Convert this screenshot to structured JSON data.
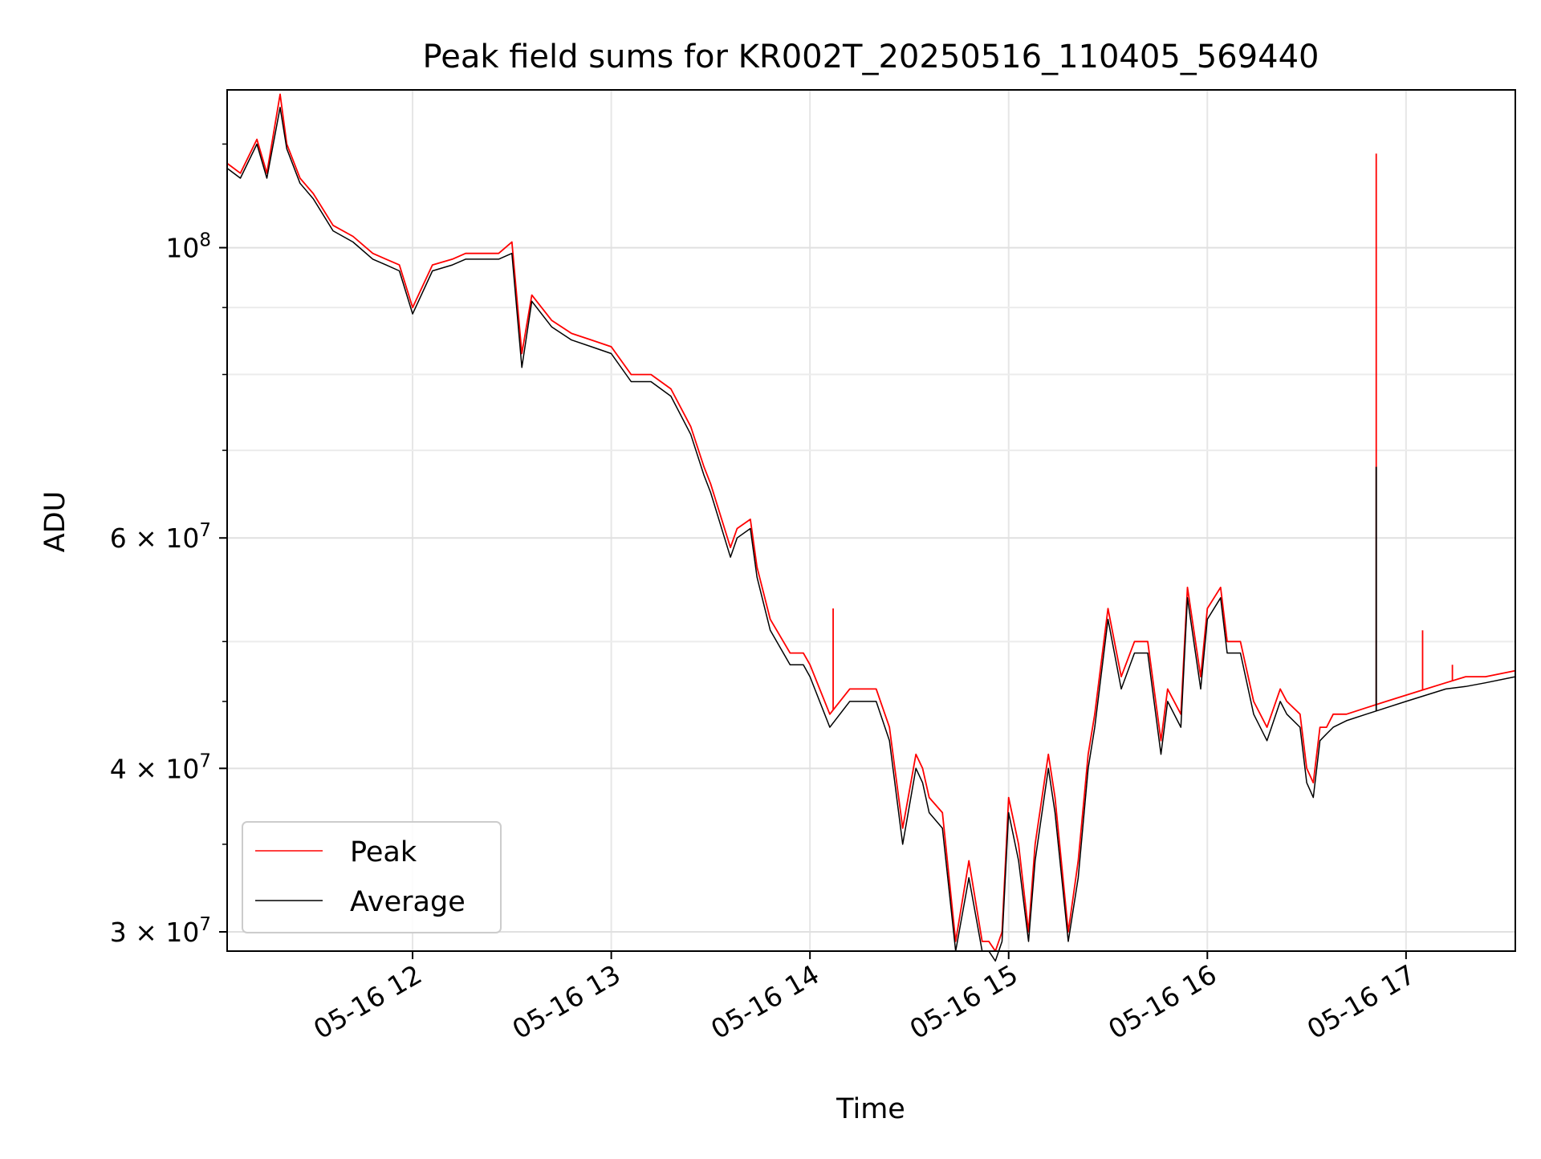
{
  "chart_data": {
    "type": "line",
    "title": "Peak field sums for KR002T_20250516_110405_569440",
    "xlabel": "Time",
    "ylabel": "ADU",
    "yscale": "log",
    "xlim": [
      "2025-05-16 11:04",
      "2025-05-16 17:33"
    ],
    "ylim": [
      29000000,
      132000000
    ],
    "grid": true,
    "legend": "lower-left",
    "x_ticks": [
      "05-16 12",
      "05-16 13",
      "05-16 14",
      "05-16 15",
      "05-16 16",
      "05-16 17"
    ],
    "x_tick_values": [
      "2025-05-16 12:00",
      "2025-05-16 13:00",
      "2025-05-16 14:00",
      "2025-05-16 15:00",
      "2025-05-16 16:00",
      "2025-05-16 17:00"
    ],
    "y_major_ticks": [
      {
        "value": 30000000,
        "mantissa": "3",
        "exponent": "7"
      },
      {
        "value": 40000000,
        "mantissa": "4",
        "exponent": "7"
      },
      {
        "value": 60000000,
        "mantissa": "6",
        "exponent": "7"
      },
      {
        "value": 100000000,
        "mantissa": "",
        "exponent": "8"
      }
    ],
    "y_minor_gridlines": [
      50000000,
      70000000,
      80000000,
      90000000
    ],
    "times": [
      "2025-05-16 11:04",
      "2025-05-16 11:08",
      "2025-05-16 11:13",
      "2025-05-16 11:16",
      "2025-05-16 11:20",
      "2025-05-16 11:22",
      "2025-05-16 11:26",
      "2025-05-16 11:30",
      "2025-05-16 11:36",
      "2025-05-16 11:42",
      "2025-05-16 11:48",
      "2025-05-16 11:52",
      "2025-05-16 11:56",
      "2025-05-16 12:00",
      "2025-05-16 12:06",
      "2025-05-16 12:12",
      "2025-05-16 12:16",
      "2025-05-16 12:20",
      "2025-05-16 12:24",
      "2025-05-16 12:26",
      "2025-05-16 12:30",
      "2025-05-16 12:33",
      "2025-05-16 12:36",
      "2025-05-16 12:42",
      "2025-05-16 12:48",
      "2025-05-16 12:54",
      "2025-05-16 13:00",
      "2025-05-16 13:06",
      "2025-05-16 13:12",
      "2025-05-16 13:18",
      "2025-05-16 13:24",
      "2025-05-16 13:28",
      "2025-05-16 13:30",
      "2025-05-16 13:36",
      "2025-05-16 13:38",
      "2025-05-16 13:42",
      "2025-05-16 13:44",
      "2025-05-16 13:48",
      "2025-05-16 13:54",
      "2025-05-16 13:58",
      "2025-05-16 14:00",
      "2025-05-16 14:06",
      "2025-05-16 14:12",
      "2025-05-16 14:16",
      "2025-05-16 14:20",
      "2025-05-16 14:24",
      "2025-05-16 14:28",
      "2025-05-16 14:32",
      "2025-05-16 14:34",
      "2025-05-16 14:36",
      "2025-05-16 14:40",
      "2025-05-16 14:44",
      "2025-05-16 14:48",
      "2025-05-16 14:52",
      "2025-05-16 14:54",
      "2025-05-16 14:56",
      "2025-05-16 14:58",
      "2025-05-16 15:00",
      "2025-05-16 15:03",
      "2025-05-16 15:06",
      "2025-05-16 15:08",
      "2025-05-16 15:12",
      "2025-05-16 15:14",
      "2025-05-16 15:18",
      "2025-05-16 15:21",
      "2025-05-16 15:24",
      "2025-05-16 15:26",
      "2025-05-16 15:30",
      "2025-05-16 15:34",
      "2025-05-16 15:38",
      "2025-05-16 15:42",
      "2025-05-16 15:46",
      "2025-05-16 15:48",
      "2025-05-16 15:52",
      "2025-05-16 15:54",
      "2025-05-16 15:58",
      "2025-05-16 16:00",
      "2025-05-16 16:04",
      "2025-05-16 16:06",
      "2025-05-16 16:10",
      "2025-05-16 16:14",
      "2025-05-16 16:18",
      "2025-05-16 16:22",
      "2025-05-16 16:24",
      "2025-05-16 16:28",
      "2025-05-16 16:30",
      "2025-05-16 16:32",
      "2025-05-16 16:34",
      "2025-05-16 16:36",
      "2025-05-16 16:38",
      "2025-05-16 16:42",
      "2025-05-16 16:48",
      "2025-05-16 16:54",
      "2025-05-16 17:00",
      "2025-05-16 17:06",
      "2025-05-16 17:12",
      "2025-05-16 17:18",
      "2025-05-16 17:24",
      "2025-05-16 17:33"
    ],
    "series": [
      {
        "name": "Peak",
        "color": "#ff0000",
        "values": [
          116,
          114,
          121,
          114,
          131,
          120,
          113,
          110,
          104,
          102,
          99,
          98,
          97,
          90,
          97,
          98,
          99,
          99,
          99,
          99,
          101,
          83,
          92,
          88,
          86,
          85,
          84,
          80,
          80,
          78,
          73,
          68,
          66,
          59,
          61,
          62,
          57,
          52,
          49,
          49,
          48,
          44,
          46,
          46,
          46,
          43,
          36,
          41,
          40,
          38,
          37,
          29.5,
          34,
          29.5,
          29.5,
          29,
          30,
          38,
          35,
          30,
          35,
          41,
          38,
          30,
          34,
          41,
          44,
          53,
          47,
          50,
          50,
          42,
          46,
          44,
          55,
          47,
          53,
          55,
          50,
          50,
          45,
          43,
          46,
          45,
          44,
          40,
          39,
          43,
          43,
          44,
          44,
          44.5,
          45,
          45.5,
          46,
          46.5,
          47,
          47,
          47.5
        ],
        "annotations": [
          {
            "time": "2025-05-16 16:51",
            "value": 118
          },
          {
            "time": "2025-05-16 17:05",
            "value": 51
          },
          {
            "time": "2025-05-16 17:14",
            "value": 48
          },
          {
            "time": "2025-05-16 14:07",
            "value": 53
          }
        ]
      },
      {
        "name": "Average",
        "color": "#000000",
        "values": [
          115,
          113,
          120,
          113,
          128,
          119,
          112,
          109,
          103,
          101,
          98,
          97,
          96,
          89,
          96,
          97,
          98,
          98,
          98,
          98,
          99,
          81,
          91,
          87,
          85,
          84,
          83,
          79,
          79,
          77,
          72,
          67,
          65,
          58,
          60,
          61,
          56,
          51,
          48,
          48,
          47,
          43,
          45,
          45,
          45,
          42,
          35,
          40,
          39,
          37,
          36,
          29,
          33,
          29,
          29,
          28.5,
          29.5,
          37,
          34,
          29.5,
          34,
          40,
          37,
          29.5,
          33,
          40,
          43,
          52,
          46,
          49,
          49,
          41,
          45,
          43,
          54,
          46,
          52,
          54,
          49,
          49,
          44,
          42,
          45,
          44,
          43,
          39,
          38,
          42,
          42.5,
          43,
          43.5,
          44,
          44.5,
          45,
          45.5,
          46,
          46.2,
          46.5,
          47
        ],
        "annotations": [
          {
            "time": "2025-05-16 16:51",
            "value": 68
          }
        ]
      }
    ],
    "value_unit_multiplier": 1000000
  }
}
